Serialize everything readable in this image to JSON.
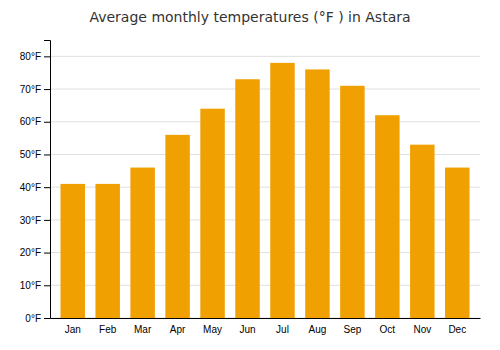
{
  "chart_data": {
    "type": "bar",
    "title": "Average monthly temperatures (°F ) in Astara",
    "categories": [
      "Jan",
      "Feb",
      "Mar",
      "Apr",
      "May",
      "Jun",
      "Jul",
      "Aug",
      "Sep",
      "Oct",
      "Nov",
      "Dec"
    ],
    "values": [
      41,
      41,
      46,
      56,
      64,
      73,
      78,
      76,
      71,
      62,
      53,
      46
    ],
    "color": "#F0A000",
    "ylim": [
      0,
      85
    ],
    "yticks": [
      {
        "value": 0,
        "label": "0°F"
      },
      {
        "value": 10,
        "label": "10°F"
      },
      {
        "value": 20,
        "label": "20°F"
      },
      {
        "value": 30,
        "label": "30°F"
      },
      {
        "value": 40,
        "label": "40°F"
      },
      {
        "value": 50,
        "label": "50°F"
      },
      {
        "value": 60,
        "label": "60°F"
      },
      {
        "value": 70,
        "label": "70°F"
      },
      {
        "value": 80,
        "label": "80°F"
      }
    ],
    "grid": true
  }
}
